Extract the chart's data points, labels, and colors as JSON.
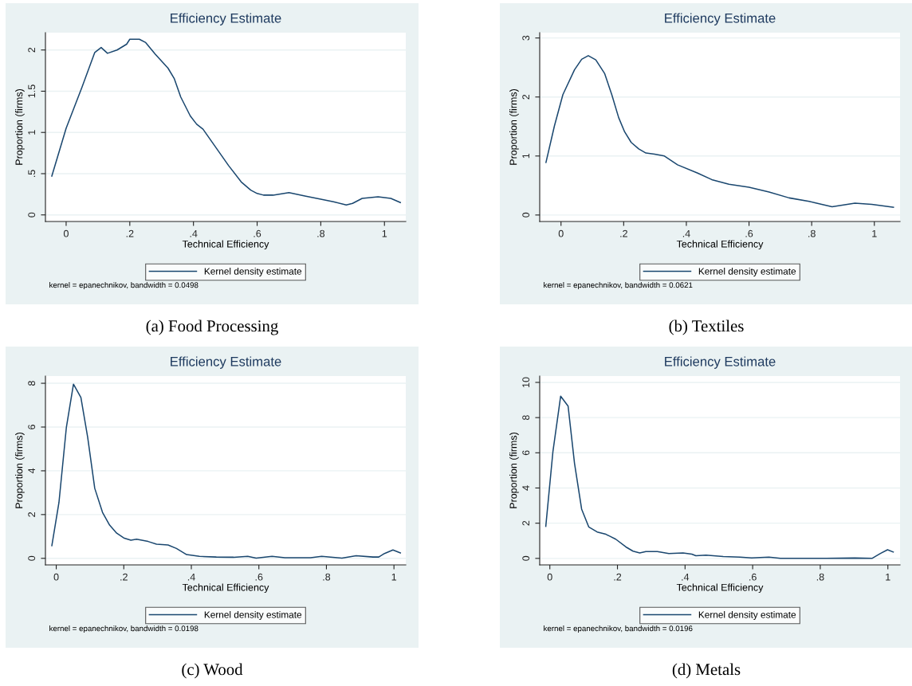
{
  "chart_data": [
    {
      "type": "line",
      "title": "Efficiency Estimate",
      "xlabel": "Technical Efficiency",
      "ylabel": "Proportion (firms)",
      "xlim": [
        -0.065,
        1.067
      ],
      "ylim": [
        -0.08,
        2.21
      ],
      "xticks": [
        0,
        {
          "value": 0.2,
          "label": ".2"
        },
        {
          "value": 0.4,
          "label": ".4"
        },
        {
          "value": 0.6,
          "label": ".6"
        },
        {
          "value": 0.8,
          "label": ".8"
        },
        1
      ],
      "yticks": [
        0,
        {
          "value": 0.5,
          "label": ".5"
        },
        1,
        1.5,
        2
      ],
      "grid": "y",
      "legend": "bottom",
      "annotations": [
        "kernel = epanechnikov, bandwidth = 0.0498",
        "(a) Food Processing"
      ],
      "series": [
        {
          "name": "Kernel density estimate",
          "color": "#1a476f",
          "x": [
            -0.045,
            0,
            0.05,
            0.09,
            0.11,
            0.13,
            0.16,
            0.19,
            0.2,
            0.23,
            0.25,
            0.28,
            0.32,
            0.34,
            0.36,
            0.39,
            0.41,
            0.43,
            0.47,
            0.51,
            0.55,
            0.58,
            0.6,
            0.62,
            0.65,
            0.7,
            0.75,
            0.8,
            0.84,
            0.88,
            0.9,
            0.93,
            0.98,
            1.02,
            1.05
          ],
          "values": [
            0.47,
            1.05,
            1.55,
            1.97,
            2.03,
            1.96,
            2.0,
            2.07,
            2.13,
            2.13,
            2.09,
            1.95,
            1.78,
            1.65,
            1.43,
            1.2,
            1.1,
            1.04,
            0.82,
            0.6,
            0.4,
            0.3,
            0.26,
            0.24,
            0.24,
            0.27,
            0.23,
            0.19,
            0.16,
            0.12,
            0.14,
            0.2,
            0.22,
            0.2,
            0.15
          ]
        }
      ]
    },
    {
      "type": "line",
      "title": "Efficiency Estimate",
      "xlabel": "Technical Efficiency",
      "ylabel": "Proportion (firms)",
      "xlim": [
        -0.068,
        1.082
      ],
      "ylim": [
        -0.11,
        3.09
      ],
      "xticks": [
        0,
        {
          "value": 0.2,
          "label": ".2"
        },
        {
          "value": 0.4,
          "label": ".4"
        },
        {
          "value": 0.6,
          "label": ".6"
        },
        {
          "value": 0.8,
          "label": ".8"
        },
        1
      ],
      "yticks": [
        0,
        1,
        2,
        3
      ],
      "grid": "y",
      "legend": "bottom",
      "annotations": [
        "kernel = epanechnikov, bandwidth = 0.0621",
        "(b) Textiles"
      ],
      "series": [
        {
          "name": "Kernel density estimate",
          "color": "#1a476f",
          "x": [
            -0.048,
            -0.021,
            0.006,
            0.043,
            0.066,
            0.087,
            0.111,
            0.139,
            0.162,
            0.184,
            0.203,
            0.224,
            0.248,
            0.271,
            0.299,
            0.33,
            0.372,
            0.436,
            0.481,
            0.536,
            0.6,
            0.664,
            0.728,
            0.792,
            0.865,
            0.938,
            0.992,
            1.061
          ],
          "values": [
            0.89,
            1.51,
            2.04,
            2.46,
            2.64,
            2.7,
            2.63,
            2.4,
            2.04,
            1.65,
            1.41,
            1.23,
            1.12,
            1.05,
            1.03,
            1.0,
            0.85,
            0.71,
            0.6,
            0.52,
            0.47,
            0.39,
            0.29,
            0.23,
            0.14,
            0.2,
            0.18,
            0.13
          ]
        }
      ]
    },
    {
      "type": "line",
      "title": "Efficiency Estimate",
      "xlabel": "Technical Efficiency",
      "ylabel": "Proportion (firms)",
      "xlim": [
        -0.032,
        1.035
      ],
      "ylim": [
        -0.3,
        8.33
      ],
      "xticks": [
        0,
        {
          "value": 0.2,
          "label": ".2"
        },
        {
          "value": 0.4,
          "label": ".4"
        },
        {
          "value": 0.6,
          "label": ".6"
        },
        {
          "value": 0.8,
          "label": ".8"
        },
        1
      ],
      "yticks": [
        0,
        2,
        4,
        6,
        8
      ],
      "grid": "y",
      "legend": "bottom",
      "annotations": [
        "kernel = epanechnikov, bandwidth = 0.0198",
        "(c) Wood"
      ],
      "series": [
        {
          "name": "Kernel density estimate",
          "color": "#1a476f",
          "x": [
            -0.013,
            0.008,
            0.03,
            0.051,
            0.073,
            0.093,
            0.114,
            0.137,
            0.158,
            0.179,
            0.2,
            0.221,
            0.238,
            0.272,
            0.297,
            0.331,
            0.356,
            0.386,
            0.424,
            0.474,
            0.525,
            0.567,
            0.592,
            0.639,
            0.677,
            0.753,
            0.786,
            0.846,
            0.888,
            0.938,
            0.955,
            0.972,
            0.997,
            1.019
          ],
          "values": [
            0.58,
            2.55,
            5.99,
            7.96,
            7.35,
            5.54,
            3.2,
            2.1,
            1.52,
            1.15,
            0.93,
            0.83,
            0.87,
            0.77,
            0.65,
            0.61,
            0.45,
            0.17,
            0.09,
            0.06,
            0.05,
            0.09,
            0.01,
            0.09,
            0.03,
            0.03,
            0.09,
            0.01,
            0.12,
            0.06,
            0.06,
            0.22,
            0.38,
            0.25
          ]
        }
      ]
    },
    {
      "type": "line",
      "title": "Efficiency Estimate",
      "xlabel": "Technical Efficiency",
      "ylabel": "Proportion (firms)",
      "xlim": [
        -0.03,
        1.036
      ],
      "ylim": [
        -0.37,
        10.36
      ],
      "xticks": [
        0,
        {
          "value": 0.2,
          "label": ".2"
        },
        {
          "value": 0.4,
          "label": ".4"
        },
        {
          "value": 0.6,
          "label": ".6"
        },
        {
          "value": 0.8,
          "label": ".8"
        },
        1
      ],
      "yticks": [
        0,
        2,
        4,
        6,
        8,
        10
      ],
      "grid": "y",
      "legend": "bottom",
      "annotations": [
        "kernel = epanechnikov, bandwidth = 0.0196",
        "(d) Metals"
      ],
      "series": [
        {
          "name": "Kernel density estimate",
          "color": "#1a476f",
          "x": [
            -0.012,
            0.009,
            0.032,
            0.054,
            0.073,
            0.094,
            0.115,
            0.14,
            0.166,
            0.195,
            0.225,
            0.246,
            0.266,
            0.284,
            0.318,
            0.352,
            0.394,
            0.42,
            0.432,
            0.462,
            0.513,
            0.563,
            0.597,
            0.648,
            0.682,
            0.733,
            0.817,
            0.902,
            0.953,
            0.978,
            0.999,
            1.016
          ],
          "values": [
            1.82,
            6.05,
            9.22,
            8.65,
            5.4,
            2.8,
            1.79,
            1.5,
            1.37,
            1.09,
            0.65,
            0.41,
            0.31,
            0.39,
            0.39,
            0.28,
            0.31,
            0.24,
            0.15,
            0.18,
            0.11,
            0.07,
            0.03,
            0.07,
            0.0,
            0.0,
            0.0,
            0.02,
            0.0,
            0.28,
            0.49,
            0.36
          ]
        }
      ]
    }
  ]
}
